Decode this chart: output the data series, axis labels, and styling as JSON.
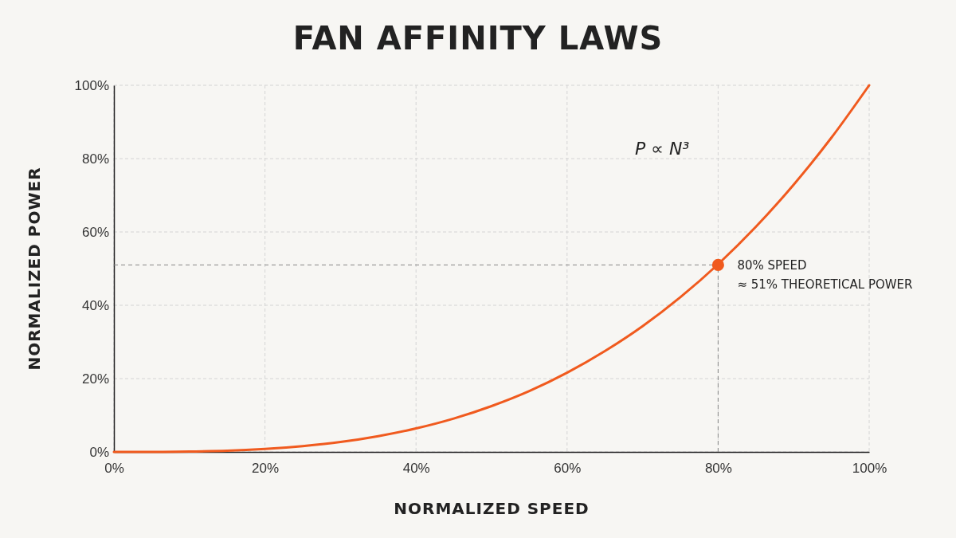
{
  "chart_data": {
    "type": "line",
    "title": "FAN AFFINITY LAWS",
    "xlabel": "NORMALIZED SPEED",
    "ylabel": "NORMALIZED POWER",
    "x": [
      0,
      5,
      10,
      15,
      20,
      25,
      30,
      35,
      40,
      45,
      50,
      55,
      60,
      65,
      70,
      75,
      80,
      85,
      90,
      95,
      100
    ],
    "series": [
      {
        "color": "#f05a1e",
        "values": [
          0,
          0,
          0.1,
          0.3,
          0.8,
          1.6,
          2.7,
          4.3,
          6.4,
          9.1,
          12.5,
          16.6,
          21.6,
          27.5,
          34.3,
          42.2,
          51.2,
          61.4,
          72.9,
          85.7,
          100
        ]
      },
      {
        "type": "scatter",
        "color": "#f05a1e",
        "x": [
          80
        ],
        "values": [
          51
        ],
        "marker": "circle"
      }
    ],
    "xlim": [
      0,
      100
    ],
    "ylim": [
      0,
      100
    ],
    "xticks": [
      {
        "value": 0,
        "label": "0%"
      },
      {
        "value": 20,
        "label": "20%"
      },
      {
        "value": 40,
        "label": "40%"
      },
      {
        "value": 60,
        "label": "60%"
      },
      {
        "value": 80,
        "label": "80%"
      },
      {
        "value": 100,
        "label": "100%"
      }
    ],
    "yticks": [
      {
        "value": 0,
        "label": "0%"
      },
      {
        "value": 20,
        "label": "20%"
      },
      {
        "value": 40,
        "label": "40%"
      },
      {
        "value": 60,
        "label": "60%"
      },
      {
        "value": 80,
        "label": "80%"
      },
      {
        "value": 100,
        "label": "100%"
      }
    ],
    "grid": true,
    "marker": "none",
    "line_style": "solid",
    "ref_lines": [
      {
        "axis": "x",
        "value": 80,
        "color": "#888888",
        "line_style": "dashed"
      },
      {
        "axis": "y",
        "value": 51,
        "color": "#888888",
        "line_style": "dashed"
      }
    ],
    "annotations": [
      "P ∝ N³",
      {
        "text": "80% SPEED\n≈ 51% THEORETICAL POWER",
        "x": 80,
        "y": 51
      }
    ]
  }
}
